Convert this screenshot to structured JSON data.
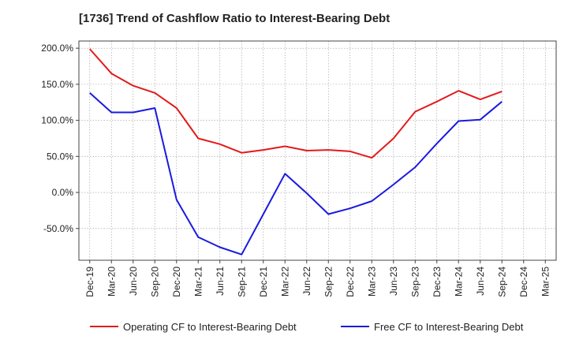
{
  "chart_data": {
    "type": "line",
    "title": "[1736]  Trend of Cashflow Ratio to Interest-Bearing Debt",
    "categories": [
      "Dec-19",
      "Mar-20",
      "Jun-20",
      "Sep-20",
      "Dec-20",
      "Mar-21",
      "Jun-21",
      "Sep-21",
      "Dec-21",
      "Mar-22",
      "Jun-22",
      "Sep-22",
      "Dec-22",
      "Mar-23",
      "Jun-23",
      "Sep-23",
      "Dec-23",
      "Mar-24",
      "Jun-24",
      "Sep-24",
      "Dec-24",
      "Mar-25"
    ],
    "y_ticks": [
      "200.0%",
      "150.0%",
      "100.0%",
      "50.0%",
      "0.0%",
      "-50.0%"
    ],
    "y_tick_values": [
      200,
      150,
      100,
      50,
      0,
      -50
    ],
    "ylim": [
      -94,
      210
    ],
    "grid": true,
    "legend_position": "bottom",
    "series": [
      {
        "name": "Operating CF to Interest-Bearing Debt",
        "color": "#e31a1c",
        "values": [
          199,
          165,
          148,
          138,
          117,
          75,
          67,
          55,
          59,
          64,
          58,
          59,
          57,
          48,
          75,
          112,
          126,
          141,
          129,
          140,
          null,
          null
        ]
      },
      {
        "name": "Free CF to Interest-Bearing Debt",
        "color": "#1a1adf",
        "values": [
          138,
          111,
          111,
          117,
          -10,
          -62,
          -76,
          -86,
          -30,
          26,
          -1,
          -30,
          -22,
          -12,
          11,
          35,
          68,
          99,
          101,
          126,
          null,
          null
        ]
      }
    ]
  }
}
